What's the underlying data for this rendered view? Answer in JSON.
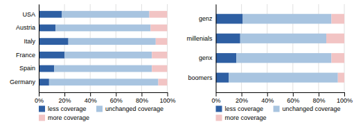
{
  "chart_data": [
    {
      "type": "bar",
      "orientation": "horizontal",
      "stacked": true,
      "categories": [
        "USA",
        "Austria",
        "Italy",
        "France",
        "Spain",
        "Germany"
      ],
      "series": [
        {
          "name": "less coverage",
          "color": "#2E5FA3",
          "values": [
            18,
            13,
            23,
            20,
            12,
            8
          ]
        },
        {
          "name": "unchanged coverage",
          "color": "#A8C4E0",
          "values": [
            68,
            74,
            68,
            68,
            76,
            85
          ]
        },
        {
          "name": "more coverage",
          "color": "#F2C4C4",
          "values": [
            14,
            13,
            9,
            12,
            12,
            7
          ]
        }
      ],
      "xlim": [
        0,
        100
      ],
      "xticks": [
        {
          "value": 0,
          "label": "0%"
        },
        {
          "value": 20,
          "label": "20%"
        },
        {
          "value": 40,
          "label": "40%"
        },
        {
          "value": 60,
          "label": "60%"
        },
        {
          "value": 80,
          "label": "80%"
        },
        {
          "value": 100,
          "label": "100%"
        }
      ],
      "grid": true,
      "legend": "bottom"
    },
    {
      "type": "bar",
      "orientation": "horizontal",
      "stacked": true,
      "categories": [
        "genz",
        "millenials",
        "genx",
        "boomers"
      ],
      "series": [
        {
          "name": "less coverage",
          "color": "#2E5FA3",
          "values": [
            21,
            19,
            16,
            10
          ]
        },
        {
          "name": "unchanged coverage",
          "color": "#A8C4E0",
          "values": [
            69,
            67,
            74,
            85
          ]
        },
        {
          "name": "more coverage",
          "color": "#F2C4C4",
          "values": [
            10,
            14,
            10,
            5
          ]
        }
      ],
      "xlim": [
        0,
        100
      ],
      "xticks": [
        {
          "value": 0,
          "label": "0%"
        },
        {
          "value": 20,
          "label": "20%"
        },
        {
          "value": 40,
          "label": "40%"
        },
        {
          "value": 60,
          "label": "60%"
        },
        {
          "value": 80,
          "label": "80%"
        },
        {
          "value": 100,
          "label": "100%"
        }
      ],
      "grid": true,
      "legend": "bottom"
    }
  ]
}
